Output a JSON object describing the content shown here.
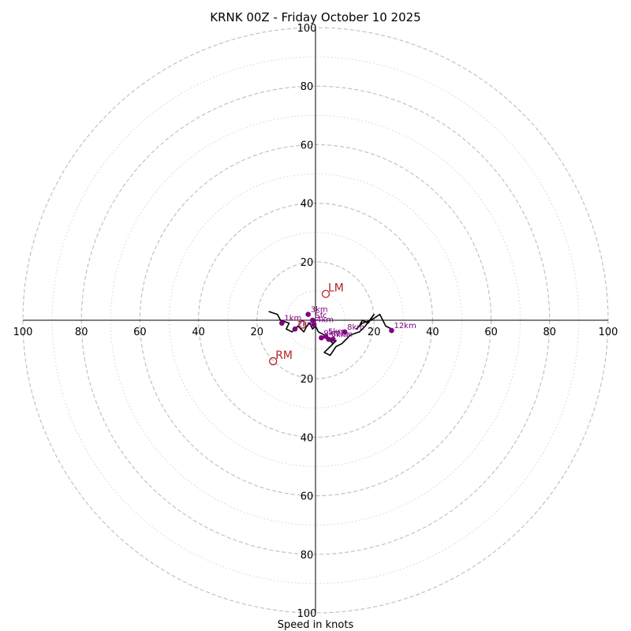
{
  "chart_data": {
    "type": "scatter",
    "subtype": "hodograph",
    "title": "KRNK 00Z - Friday October 10 2025",
    "xlabel": "Speed in knots",
    "ylabel": "",
    "xlim": [
      -100,
      100
    ],
    "ylim": [
      -100,
      100
    ],
    "tick_labels": [
      "100",
      "80",
      "60",
      "40",
      "20",
      "20",
      "40",
      "60",
      "80",
      "100"
    ],
    "rings_dashed": [
      20,
      40,
      60,
      80,
      100
    ],
    "rings_dotted": [
      10,
      30,
      50,
      70,
      90
    ],
    "grid": true,
    "colors": {
      "trace": "#000000",
      "height_points": "#800080",
      "storm_motion": "#b22222",
      "grid": "#bdbdbd",
      "axes": "#000000"
    },
    "trace": {
      "u": [
        -16,
        -13,
        -12,
        -9,
        -10,
        -8,
        -6,
        -4,
        -3,
        -2,
        -1,
        0,
        1,
        3,
        4,
        6,
        7,
        5,
        3,
        5,
        7,
        9,
        10,
        12,
        15,
        17,
        20,
        18,
        16,
        15,
        14,
        16,
        19,
        22,
        23,
        24,
        26
      ],
      "v": [
        3,
        2,
        0,
        -1,
        -3,
        -4,
        -2,
        -4,
        -2,
        -1,
        -3,
        -2,
        -4,
        -5,
        -6,
        -8,
        -7,
        -9,
        -11,
        -12,
        -9,
        -8,
        -7,
        -5,
        -4,
        -2,
        2,
        -1,
        0,
        -2,
        -3,
        -1,
        0,
        2,
        0,
        -2,
        -3
      ]
    },
    "height_points": [
      {
        "label": "Sfc",
        "u": -1,
        "v": 0
      },
      {
        "label": "1km",
        "u": -11.5,
        "v": -1
      },
      {
        "label": "2km",
        "u": -7,
        "v": -3
      },
      {
        "label": "3km",
        "u": -2.5,
        "v": 2
      },
      {
        "label": "4km",
        "u": -0.5,
        "v": -1.5
      },
      {
        "label": "5km",
        "u": 3.5,
        "v": -5.5
      },
      {
        "label": "6km",
        "u": 4.5,
        "v": -6.5
      },
      {
        "label": "7km",
        "u": 6,
        "v": -6.5
      },
      {
        "label": "8km",
        "u": 10,
        "v": -4
      },
      {
        "label": "9km",
        "u": 2,
        "v": -6
      },
      {
        "label": "12km",
        "u": 26,
        "v": -3.5
      }
    ],
    "storm_motion": [
      {
        "label": "LM",
        "u": 3.5,
        "v": 9
      },
      {
        "label": "RM",
        "u": -14.5,
        "v": -14
      }
    ],
    "mean_wind": {
      "label": "",
      "u": -4.5,
      "v": -1.5
    }
  }
}
